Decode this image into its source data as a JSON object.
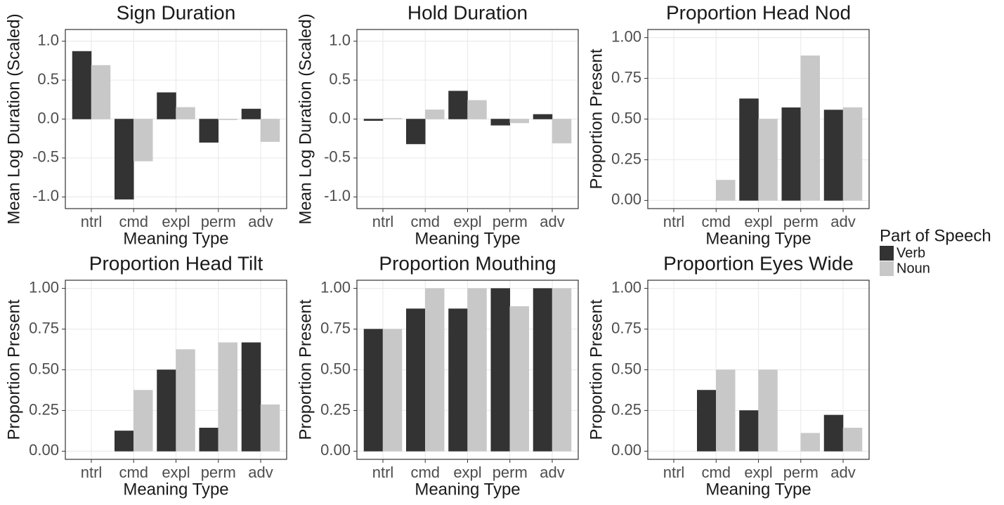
{
  "chart_data": [
    {
      "type": "bar",
      "title": "Sign Duration",
      "x_label": "Meaning Type",
      "y_label": "Mean Log Duration (Scaled)",
      "categories": [
        "ntrl",
        "cmd",
        "expl",
        "perm",
        "adv"
      ],
      "series": [
        {
          "name": "Verb",
          "color": "#333333",
          "values": [
            0.87,
            -1.03,
            0.34,
            -0.3,
            0.13
          ]
        },
        {
          "name": "Noun",
          "color": "#c8c8c8",
          "values": [
            0.69,
            -0.54,
            0.15,
            -0.01,
            -0.29
          ]
        }
      ],
      "ylim": [
        -1.15,
        1.15
      ],
      "yticks": [
        {
          "value": 1,
          "label": "1.0"
        },
        0.5,
        {
          "value": 0,
          "label": "0.0"
        },
        -0.5,
        {
          "value": -1,
          "label": "-1.0"
        }
      ],
      "grid": true
    },
    {
      "type": "bar",
      "title": "Hold Duration",
      "x_label": "Meaning Type",
      "y_label": "Mean Log Duration (Scaled)",
      "categories": [
        "ntrl",
        "cmd",
        "expl",
        "perm",
        "adv"
      ],
      "series": [
        {
          "name": "Verb",
          "color": "#333333",
          "values": [
            -0.02,
            -0.32,
            0.36,
            -0.08,
            0.06
          ]
        },
        {
          "name": "Noun",
          "color": "#c8c8c8",
          "values": [
            0.01,
            0.12,
            0.24,
            -0.05,
            -0.31
          ]
        }
      ],
      "ylim": [
        -1.15,
        1.15
      ],
      "yticks": [
        {
          "value": 1,
          "label": "1.0"
        },
        0.5,
        {
          "value": 0,
          "label": "0.0"
        },
        -0.5,
        {
          "value": -1,
          "label": "-1.0"
        }
      ],
      "grid": true
    },
    {
      "type": "bar",
      "title": "Proportion Head Nod",
      "x_label": "Meaning Type",
      "y_label": "Proportion Present",
      "categories": [
        "ntrl",
        "cmd",
        "expl",
        "perm",
        "adv"
      ],
      "series": [
        {
          "name": "Verb",
          "color": "#333333",
          "values": [
            0,
            0,
            0.625,
            0.57,
            0.556
          ]
        },
        {
          "name": "Noun",
          "color": "#c8c8c8",
          "values": [
            0,
            0.125,
            0.5,
            0.889,
            0.571
          ]
        }
      ],
      "ylim": [
        -0.05,
        1.05
      ],
      "yticks": [
        {
          "value": 1,
          "label": "1.00"
        },
        0.75,
        {
          "value": 0.5,
          "label": "0.50"
        },
        0.25,
        {
          "value": 0,
          "label": "0.00"
        }
      ],
      "grid": true
    },
    {
      "type": "bar",
      "title": "Proportion Head Tilt",
      "x_label": "Meaning Type",
      "y_label": "Proportion Present",
      "categories": [
        "ntrl",
        "cmd",
        "expl",
        "perm",
        "adv"
      ],
      "series": [
        {
          "name": "Verb",
          "color": "#333333",
          "values": [
            0,
            0.125,
            0.5,
            0.143,
            0.667
          ]
        },
        {
          "name": "Noun",
          "color": "#c8c8c8",
          "values": [
            0,
            0.375,
            0.625,
            0.667,
            0.286
          ]
        }
      ],
      "ylim": [
        -0.05,
        1.05
      ],
      "yticks": [
        {
          "value": 1,
          "label": "1.00"
        },
        0.75,
        {
          "value": 0.5,
          "label": "0.50"
        },
        0.25,
        {
          "value": 0,
          "label": "0.00"
        }
      ],
      "grid": true
    },
    {
      "type": "bar",
      "title": "Proportion Mouthing",
      "x_label": "Meaning Type",
      "y_label": "Proportion Present",
      "categories": [
        "ntrl",
        "cmd",
        "expl",
        "perm",
        "adv"
      ],
      "series": [
        {
          "name": "Verb",
          "color": "#333333",
          "values": [
            0.75,
            0.875,
            0.875,
            1,
            1
          ]
        },
        {
          "name": "Noun",
          "color": "#c8c8c8",
          "values": [
            0.75,
            1,
            1,
            0.889,
            1
          ]
        }
      ],
      "ylim": [
        -0.05,
        1.05
      ],
      "yticks": [
        {
          "value": 1,
          "label": "1.00"
        },
        0.75,
        {
          "value": 0.5,
          "label": "0.50"
        },
        0.25,
        {
          "value": 0,
          "label": "0.00"
        }
      ],
      "grid": true
    },
    {
      "type": "bar",
      "title": "Proportion Eyes Wide",
      "x_label": "Meaning Type",
      "y_label": "Proportion Present",
      "categories": [
        "ntrl",
        "cmd",
        "expl",
        "perm",
        "adv"
      ],
      "series": [
        {
          "name": "Verb",
          "color": "#333333",
          "values": [
            0,
            0.375,
            0.25,
            0,
            0.222
          ]
        },
        {
          "name": "Noun",
          "color": "#c8c8c8",
          "values": [
            0,
            0.5,
            0.5,
            0.111,
            0.143
          ]
        }
      ],
      "ylim": [
        -0.05,
        1.05
      ],
      "yticks": [
        {
          "value": 1,
          "label": "1.00"
        },
        0.75,
        {
          "value": 0.5,
          "label": "0.50"
        },
        0.25,
        {
          "value": 0,
          "label": "0.00"
        }
      ],
      "grid": true
    }
  ],
  "legend": {
    "title": "Part of Speech",
    "position": "right"
  }
}
